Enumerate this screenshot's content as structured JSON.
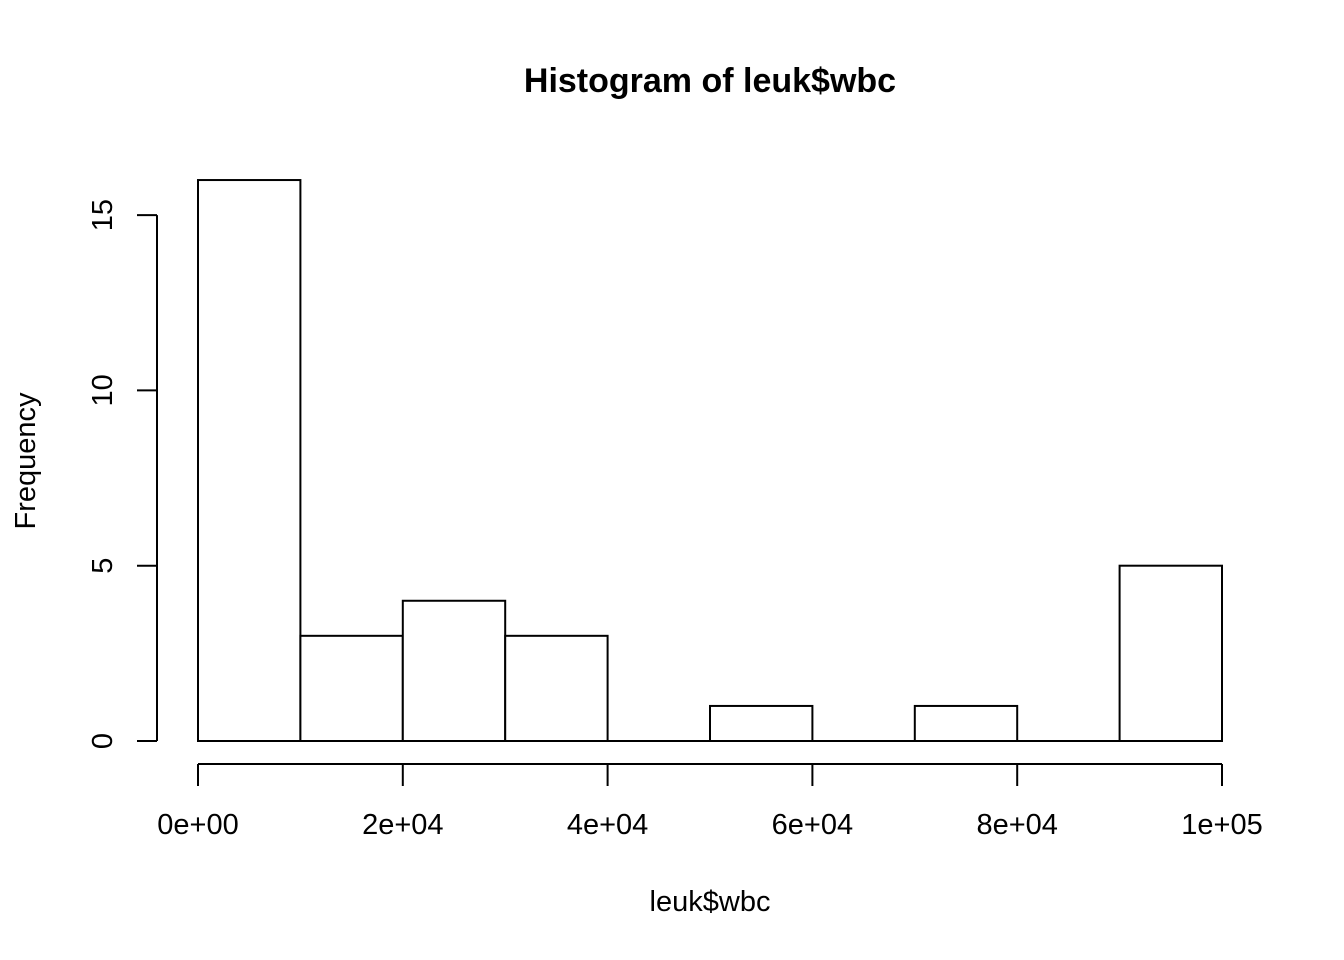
{
  "chart_data": {
    "type": "bar",
    "title": "Histogram of leuk$wbc",
    "xlabel": "leuk$wbc",
    "ylabel": "Frequency",
    "bins": [
      {
        "start": 0,
        "end": 10000,
        "count": 16
      },
      {
        "start": 10000,
        "end": 20000,
        "count": 3
      },
      {
        "start": 20000,
        "end": 30000,
        "count": 4
      },
      {
        "start": 30000,
        "end": 40000,
        "count": 3
      },
      {
        "start": 40000,
        "end": 50000,
        "count": 0
      },
      {
        "start": 50000,
        "end": 60000,
        "count": 1
      },
      {
        "start": 60000,
        "end": 70000,
        "count": 0
      },
      {
        "start": 70000,
        "end": 80000,
        "count": 1
      },
      {
        "start": 80000,
        "end": 90000,
        "count": 0
      },
      {
        "start": 90000,
        "end": 100000,
        "count": 5
      }
    ],
    "xlim": [
      0,
      100000
    ],
    "ylim": [
      0,
      16
    ],
    "x_ticks": [
      {
        "value": 0,
        "label": "0e+00"
      },
      {
        "value": 20000,
        "label": "2e+04"
      },
      {
        "value": 40000,
        "label": "4e+04"
      },
      {
        "value": 60000,
        "label": "6e+04"
      },
      {
        "value": 80000,
        "label": "8e+04"
      },
      {
        "value": 100000,
        "label": "1e+05"
      }
    ],
    "y_ticks": [
      {
        "value": 0,
        "label": "0"
      },
      {
        "value": 5,
        "label": "5"
      },
      {
        "value": 10,
        "label": "10"
      },
      {
        "value": 15,
        "label": "15"
      }
    ],
    "grid": false,
    "legend": "none"
  }
}
